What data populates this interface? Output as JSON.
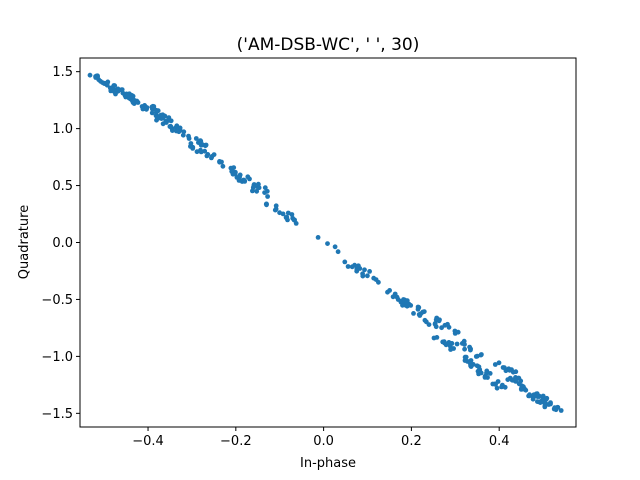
{
  "chart_data": {
    "type": "scatter",
    "title": "('AM-DSB-WC', '  ', 30)",
    "xlabel": "In-phase",
    "ylabel": "Quadrature",
    "xlim": [
      -0.555,
      0.575
    ],
    "ylim": [
      -1.62,
      1.62
    ],
    "xticks": [
      -0.4,
      -0.2,
      0.0,
      0.2,
      0.4
    ],
    "xtick_labels": [
      "−0.4",
      "−0.2",
      "0.0",
      "0.2",
      "0.4"
    ],
    "yticks": [
      -1.5,
      -1.0,
      -0.5,
      0.0,
      0.5,
      1.0,
      1.5
    ],
    "ytick_labels": [
      "−1.5",
      "−1.0",
      "−0.5",
      "0.0",
      "0.5",
      "1.0",
      "1.5"
    ],
    "grid": false,
    "marker_color": "#1f77b4",
    "clusters": [
      {
        "x": -0.5,
        "y": 1.4,
        "n": 22
      },
      {
        "x": -0.46,
        "y": 1.32,
        "n": 22
      },
      {
        "x": -0.42,
        "y": 1.22,
        "n": 20
      },
      {
        "x": -0.38,
        "y": 1.15,
        "n": 20
      },
      {
        "x": -0.36,
        "y": 1.05,
        "n": 18
      },
      {
        "x": -0.3,
        "y": 0.92,
        "n": 14
      },
      {
        "x": -0.27,
        "y": 0.78,
        "n": 12
      },
      {
        "x": -0.22,
        "y": 0.68,
        "n": 10
      },
      {
        "x": -0.18,
        "y": 0.53,
        "n": 16
      },
      {
        "x": -0.15,
        "y": 0.5,
        "n": 10
      },
      {
        "x": -0.1,
        "y": 0.27,
        "n": 12
      },
      {
        "x": -0.08,
        "y": 0.24,
        "n": 6
      },
      {
        "x": 0.0,
        "y": 0.01,
        "n": 4
      },
      {
        "x": 0.08,
        "y": -0.25,
        "n": 10
      },
      {
        "x": 0.1,
        "y": -0.28,
        "n": 6
      },
      {
        "x": 0.17,
        "y": -0.5,
        "n": 14
      },
      {
        "x": 0.2,
        "y": -0.55,
        "n": 12
      },
      {
        "x": 0.24,
        "y": -0.7,
        "n": 10
      },
      {
        "x": 0.28,
        "y": -0.72,
        "n": 10
      },
      {
        "x": 0.28,
        "y": -0.88,
        "n": 12
      },
      {
        "x": 0.34,
        "y": -0.95,
        "n": 12
      },
      {
        "x": 0.35,
        "y": -1.1,
        "n": 16
      },
      {
        "x": 0.38,
        "y": -1.2,
        "n": 16
      },
      {
        "x": 0.42,
        "y": -1.12,
        "n": 14
      },
      {
        "x": 0.45,
        "y": -1.27,
        "n": 18
      },
      {
        "x": 0.48,
        "y": -1.35,
        "n": 18
      },
      {
        "x": 0.51,
        "y": -1.4,
        "n": 18
      }
    ],
    "spread": 0.03
  }
}
